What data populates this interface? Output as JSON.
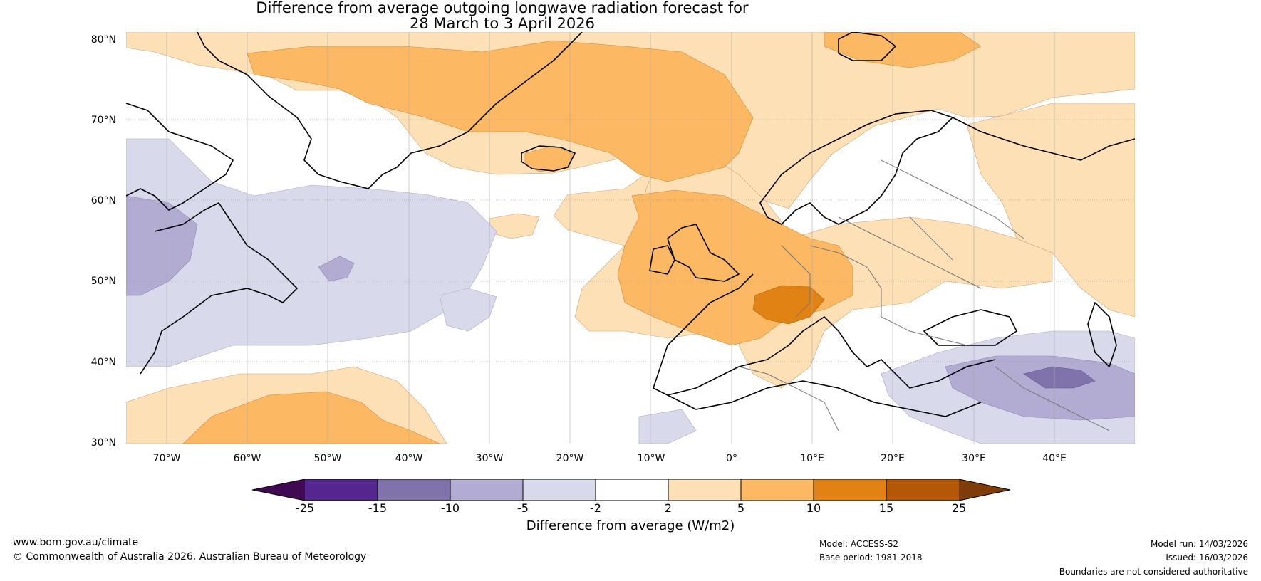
{
  "title": {
    "line1": "Difference from average outgoing longwave radiation forecast for",
    "line2": "28 March to 3 April 2026"
  },
  "latitude_labels": [
    "80°N",
    "70°N",
    "60°N",
    "50°N",
    "40°N",
    "30°N"
  ],
  "longitude_labels": [
    "70°W",
    "60°W",
    "50°W",
    "40°W",
    "30°W",
    "20°W",
    "10°W",
    "0°",
    "10°E",
    "20°E",
    "30°E",
    "40°E"
  ],
  "legend": {
    "label": "Difference from average (W/m2)",
    "ticks": [
      "-25",
      "-15",
      "-10",
      "-5",
      "-2",
      "2",
      "5",
      "10",
      "15",
      "25"
    ],
    "colors": [
      "#3f0a52",
      "#54278f",
      "#8073ac",
      "#b2abd2",
      "#d8daeb",
      "#ffffff",
      "#fee0b6",
      "#fdb863",
      "#e08214",
      "#b35806",
      "#7f3b08"
    ]
  },
  "footer": {
    "website": "www.bom.gov.au/climate",
    "copyright": "© Commonwealth of Australia 2026, Australian Bureau of Meteorology",
    "model": "Model: ACCESS-S2",
    "base_period": "Base period: 1981-2018",
    "model_run": "Model run: 14/03/2026",
    "issued": "Issued: 16/03/2026",
    "disclaimer": "Boundaries are not considered authoritative"
  },
  "anomaly_colors": {
    "purple_light": "#d8daeb",
    "purple_mid": "#b2abd2",
    "purple_dark": "#8073ac",
    "orange_light": "#fee0b6",
    "orange_mid": "#fdb863",
    "orange_dark": "#e08214"
  }
}
